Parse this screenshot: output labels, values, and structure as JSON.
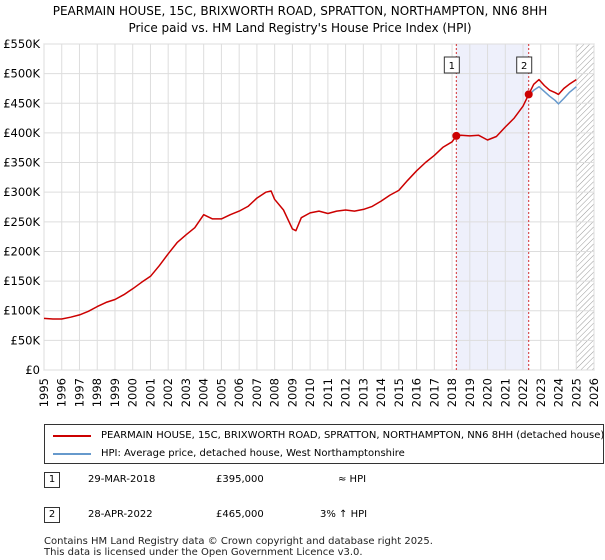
{
  "header": {
    "title_line1": "PEARMAIN HOUSE, 15C, BRIXWORTH ROAD, SPRATTON, NORTHAMPTON, NN6 8HH",
    "title_line2": "Price paid vs. HM Land Registry's House Price Index (HPI)"
  },
  "chart_data": {
    "type": "line",
    "title": "PEARMAIN HOUSE, 15C, BRIXWORTH ROAD, SPRATTON, NORTHAMPTON, NN6 8HH",
    "subtitle": "Price paid vs. HM Land Registry's House Price Index (HPI)",
    "xlabel": "",
    "ylabel": "",
    "xlim": [
      1995,
      2026
    ],
    "ylim": [
      0,
      550000
    ],
    "x_ticks": [
      "1995",
      "1996",
      "1997",
      "1998",
      "1999",
      "2000",
      "2001",
      "2002",
      "2003",
      "2004",
      "2005",
      "2006",
      "2007",
      "2008",
      "2009",
      "2010",
      "2011",
      "2012",
      "2013",
      "2014",
      "2015",
      "2016",
      "2017",
      "2018",
      "2019",
      "2020",
      "2021",
      "2022",
      "2023",
      "2024",
      "2025",
      "2026"
    ],
    "y_ticks": [
      {
        "value": 0,
        "label": "£0"
      },
      {
        "value": 50000,
        "label": "£50K"
      },
      {
        "value": 100000,
        "label": "£100K"
      },
      {
        "value": 150000,
        "label": "£150K"
      },
      {
        "value": 200000,
        "label": "£200K"
      },
      {
        "value": 250000,
        "label": "£250K"
      },
      {
        "value": 300000,
        "label": "£300K"
      },
      {
        "value": 350000,
        "label": "£350K"
      },
      {
        "value": 400000,
        "label": "£400K"
      },
      {
        "value": 450000,
        "label": "£450K"
      },
      {
        "value": 500000,
        "label": "£500K"
      },
      {
        "value": 550000,
        "label": "£550K"
      }
    ],
    "grid": true,
    "shaded_region": {
      "from": 2018.24,
      "to": 2022.32,
      "color": "#eef0fb"
    },
    "future_hatch_from": 2025.0,
    "series": [
      {
        "name": "PEARMAIN HOUSE, 15C, BRIXWORTH ROAD, SPRATTON, NORTHAMPTON, NN6 8HH (detached house)",
        "color": "#cc0000",
        "x": [
          1995.0,
          1995.5,
          1996.0,
          1996.5,
          1997.0,
          1997.5,
          1998.0,
          1998.5,
          1999.0,
          1999.5,
          2000.0,
          2000.5,
          2001.0,
          2001.5,
          2002.0,
          2002.5,
          2003.0,
          2003.5,
          2004.0,
          2004.5,
          2005.0,
          2005.5,
          2006.0,
          2006.5,
          2007.0,
          2007.5,
          2007.8,
          2008.0,
          2008.5,
          2009.0,
          2009.2,
          2009.5,
          2010.0,
          2010.5,
          2011.0,
          2011.5,
          2012.0,
          2012.5,
          2013.0,
          2013.5,
          2014.0,
          2014.5,
          2015.0,
          2015.5,
          2016.0,
          2016.5,
          2017.0,
          2017.5,
          2018.0,
          2018.24,
          2018.5,
          2019.0,
          2019.5,
          2020.0,
          2020.5,
          2021.0,
          2021.5,
          2022.0,
          2022.32,
          2022.6,
          2022.9,
          2023.2,
          2023.5,
          2023.8,
          2024.0,
          2024.3,
          2024.6,
          2025.0
        ],
        "values": [
          87000,
          86000,
          86000,
          89000,
          93000,
          99000,
          107000,
          114000,
          119000,
          127000,
          137000,
          148000,
          158000,
          176000,
          196000,
          215000,
          228000,
          240000,
          262000,
          255000,
          255000,
          262000,
          268000,
          276000,
          290000,
          300000,
          302000,
          288000,
          270000,
          238000,
          235000,
          257000,
          265000,
          268000,
          264000,
          268000,
          270000,
          268000,
          271000,
          276000,
          285000,
          295000,
          303000,
          320000,
          336000,
          350000,
          362000,
          376000,
          385000,
          395000,
          396000,
          395000,
          396000,
          388000,
          394000,
          410000,
          425000,
          445000,
          465000,
          482000,
          490000,
          480000,
          472000,
          468000,
          465000,
          475000,
          482000,
          490000
        ]
      },
      {
        "name": "HPI: Average price, detached house, West Northamptonshire",
        "color": "#6699cc",
        "x": [
          2022.32,
          2022.6,
          2022.9,
          2023.2,
          2023.5,
          2023.8,
          2024.0,
          2024.3,
          2024.6,
          2025.0
        ],
        "values": [
          463000,
          472000,
          478000,
          470000,
          462000,
          455000,
          449000,
          458000,
          468000,
          478000
        ]
      }
    ],
    "annotations": [
      {
        "label": "1",
        "x": 2018.24,
        "value": 395000
      },
      {
        "label": "2",
        "x": 2022.32,
        "value": 465000
      }
    ]
  },
  "legend": {
    "items": [
      {
        "label": "PEARMAIN HOUSE, 15C, BRIXWORTH ROAD, SPRATTON, NORTHAMPTON, NN6 8HH (detached house)",
        "color": "#cc0000"
      },
      {
        "label": "HPI: Average price, detached house, West Northamptonshire",
        "color": "#6699cc"
      }
    ]
  },
  "transactions": [
    {
      "num": "1",
      "date": "29-MAR-2018",
      "price": "£395,000",
      "hpi": "≈ HPI"
    },
    {
      "num": "2",
      "date": "28-APR-2022",
      "price": "£465,000",
      "hpi": "3% ↑ HPI"
    }
  ],
  "footer": {
    "line1": "Contains HM Land Registry data © Crown copyright and database right 2025.",
    "line2": "This data is licensed under the Open Government Licence v3.0."
  }
}
